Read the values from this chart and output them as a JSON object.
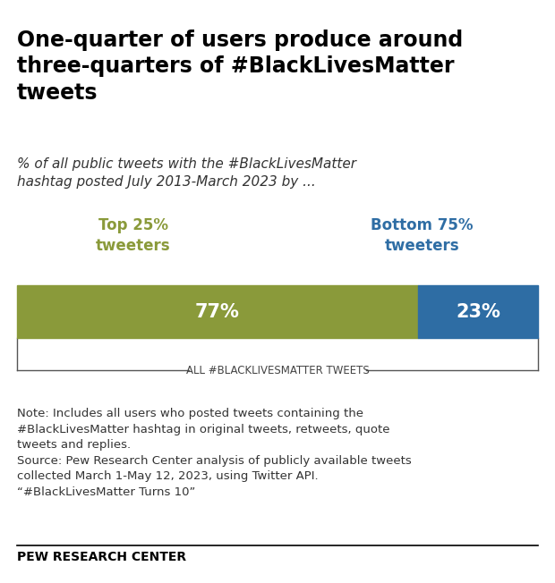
{
  "title": "One-quarter of users produce around\nthree-quarters of #BlackLivesMatter\ntweets",
  "subtitle": "% of all public tweets with the #BlackLivesMatter\nhashtag posted July 2013-March 2023 by ...",
  "bar_label1": "Top 25%\ntweeters",
  "bar_label2": "Bottom 75%\ntweeters",
  "bar_color1": "#8a9a3a",
  "bar_color2": "#2e6da4",
  "value1": 77,
  "value2": 23,
  "text1": "77%",
  "text2": "23%",
  "bracket_label": "ALL #BLACKLIVESMATTER TWEETS",
  "note": "Note: Includes all users who posted tweets containing the\n#BlackLivesMatter hashtag in original tweets, retweets, quote\ntweets and replies.\nSource: Pew Research Center analysis of publicly available tweets\ncollected March 1-May 12, 2023, using Twitter API.\n“#BlackLivesMatter Turns 10”",
  "footer": "PEW RESEARCH CENTER",
  "background_color": "#ffffff",
  "title_color": "#000000",
  "subtitle_color": "#333333",
  "label1_color": "#8a9a3a",
  "label2_color": "#2e6da4",
  "bar_text_color": "#ffffff",
  "note_color": "#333333",
  "footer_color": "#000000"
}
